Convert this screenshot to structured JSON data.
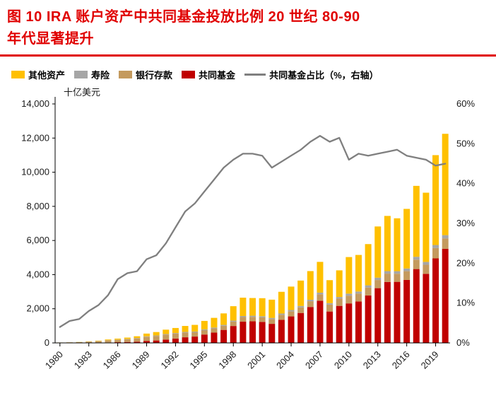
{
  "title": {
    "line1": "图 10   IRA 账户资产中共同基金投放比例 20 世纪 80-90",
    "line2": "年代显著提升"
  },
  "colors": {
    "title_red": "#e00000",
    "other_assets": "#FFC000",
    "life_insurance": "#A6A6A6",
    "bank_deposits": "#C49A5E",
    "mutual_funds": "#C00000",
    "share_line": "#7F7F7F",
    "axis": "#000000"
  },
  "legend": {
    "items": [
      {
        "name": "legend-other-assets",
        "label": "其他资产",
        "type": "swatch",
        "color": "#FFC000"
      },
      {
        "name": "legend-life-insurance",
        "label": "寿险",
        "type": "swatch",
        "color": "#A6A6A6"
      },
      {
        "name": "legend-bank-deposits",
        "label": "银行存款",
        "type": "swatch",
        "color": "#C49A5E"
      },
      {
        "name": "legend-mutual-funds",
        "label": "共同基金",
        "type": "swatch",
        "color": "#C00000"
      },
      {
        "name": "legend-mf-share-line",
        "label": "共同基金占比（%，右轴）",
        "type": "line",
        "color": "#7F7F7F"
      }
    ]
  },
  "chart_data": {
    "type": "stacked-bar+line",
    "unit_label": "十亿美元",
    "categories": [
      "1980",
      "1981",
      "1982",
      "1983",
      "1984",
      "1985",
      "1986",
      "1987",
      "1988",
      "1989",
      "1990",
      "1991",
      "1992",
      "1993",
      "1994",
      "1995",
      "1996",
      "1997",
      "1998",
      "1999",
      "2000",
      "2001",
      "2002",
      "2003",
      "2004",
      "2005",
      "2006",
      "2007",
      "2008",
      "2009",
      "2010",
      "2011",
      "2012",
      "2013",
      "2014",
      "2015",
      "2016",
      "2017",
      "2018",
      "2019",
      "2020"
    ],
    "bar_series": [
      {
        "key": "mutual-funds",
        "name": "共同基金",
        "color": "#C00000",
        "values": [
          1,
          2,
          3,
          7,
          12,
          24,
          40,
          53,
          70,
          115,
          140,
          194,
          253,
          328,
          370,
          489,
          601,
          760,
          989,
          1246,
          1262,
          1231,
          1115,
          1347,
          1551,
          1753,
          2104,
          2469,
          1838,
          2168,
          2313,
          2422,
          2779,
          3206,
          3571,
          3577,
          3690,
          4324,
          4048,
          4950,
          5513
        ]
      },
      {
        "key": "bank-deposits",
        "name": "银行存款",
        "color": "#C49A5E",
        "values": [
          18,
          27,
          38,
          62,
          87,
          120,
          138,
          161,
          195,
          246,
          267,
          295,
          288,
          278,
          253,
          258,
          249,
          242,
          258,
          265,
          263,
          262,
          279,
          299,
          297,
          329,
          337,
          380,
          404,
          425,
          453,
          464,
          463,
          477,
          484,
          475,
          510,
          552,
          528,
          605,
          610
        ]
      },
      {
        "key": "life-insurance",
        "name": "寿险",
        "color": "#A6A6A6",
        "values": [
          3,
          4,
          5,
          7,
          9,
          12,
          15,
          18,
          20,
          24,
          28,
          32,
          35,
          38,
          40,
          44,
          48,
          52,
          58,
          64,
          66,
          68,
          70,
          74,
          78,
          82,
          88,
          94,
          90,
          96,
          120,
          125,
          130,
          140,
          150,
          150,
          160,
          170,
          170,
          180,
          190
        ]
      },
      {
        "key": "other-assets",
        "name": "其他资产",
        "color": "#FFC000",
        "values": [
          3,
          5,
          9,
          16,
          24,
          44,
          57,
          78,
          104,
          161,
          201,
          255,
          297,
          349,
          393,
          497,
          569,
          674,
          845,
          1076,
          1038,
          1058,
          1069,
          1273,
          1373,
          1488,
          1678,
          1804,
          1344,
          1561,
          2143,
          2142,
          2417,
          2998,
          3234,
          3098,
          3491,
          4154,
          4054,
          5265,
          5937
        ]
      }
    ],
    "line_series": {
      "key": "mf-share",
      "name": "共同基金占比（%，右轴）",
      "color": "#7F7F7F",
      "values": [
        4,
        5.5,
        6,
        8,
        9.5,
        12,
        16,
        17.5,
        18,
        21,
        22,
        25,
        29,
        33,
        35,
        38,
        41,
        44,
        46,
        47.5,
        47.5,
        47,
        44,
        45.5,
        47,
        48.5,
        50.5,
        52,
        50.5,
        51.5,
        46,
        47.5,
        47,
        47.5,
        48,
        48.5,
        47,
        46.5,
        46,
        44.5,
        45
      ]
    },
    "left_axis": {
      "min": 0,
      "max": 14000,
      "tick_labels": [
        "0",
        "2,000",
        "4,000",
        "6,000",
        "8,000",
        "10,000",
        "12,000",
        "14,000"
      ]
    },
    "right_axis": {
      "min": 0,
      "max": 60,
      "tick_labels": [
        "0%",
        "10%",
        "20%",
        "30%",
        "40%",
        "50%",
        "60%"
      ]
    },
    "x_tick_indices": [
      0,
      3,
      6,
      9,
      12,
      15,
      18,
      21,
      24,
      27,
      30,
      33,
      36,
      39
    ],
    "grid": "off",
    "legend_position": "top"
  }
}
